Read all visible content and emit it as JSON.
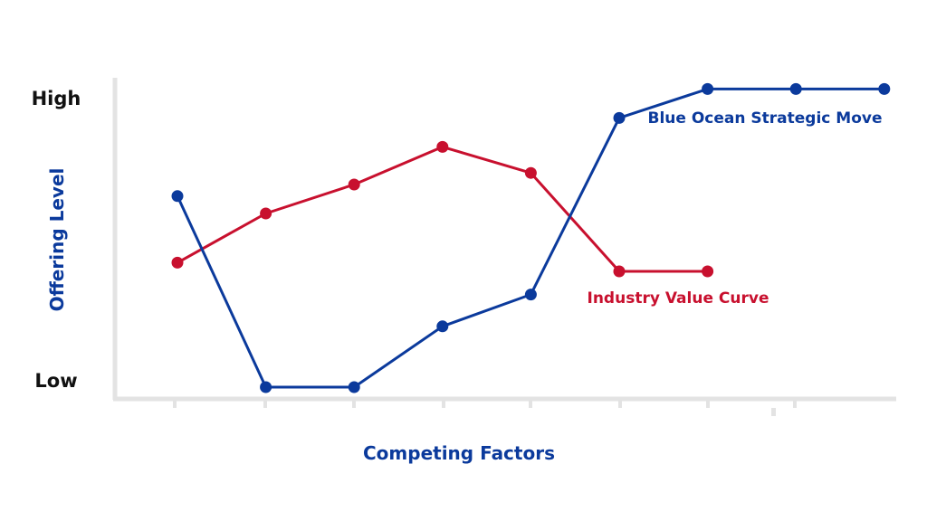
{
  "chart_data": {
    "type": "line",
    "xlabel": "Competing Factors",
    "ylabel": "Offering Level",
    "y_ticks": {
      "high": "High",
      "low": "Low"
    },
    "ylim": [
      0,
      100
    ],
    "grid": false,
    "colors": {
      "axis": "#e3e3e3",
      "blue": "#0b3a9c",
      "red": "#c8102e",
      "tick_text": "#111111"
    },
    "series": [
      {
        "name": "Blue Ocean Strategic Move",
        "color_key": "blue",
        "points": [
          {
            "x": 1,
            "y": 66
          },
          {
            "x": 2,
            "y": 0
          },
          {
            "x": 3,
            "y": 0
          },
          {
            "x": 4,
            "y": 21
          },
          {
            "x": 5,
            "y": 32
          },
          {
            "x": 6,
            "y": 93
          },
          {
            "x": 7,
            "y": 103
          },
          {
            "x": 8,
            "y": 103
          },
          {
            "x": 9,
            "y": 103
          }
        ]
      },
      {
        "name": "Industry Value Curve",
        "color_key": "red",
        "points": [
          {
            "x": 1,
            "y": 43
          },
          {
            "x": 2,
            "y": 60
          },
          {
            "x": 3,
            "y": 70
          },
          {
            "x": 4,
            "y": 83
          },
          {
            "x": 5,
            "y": 74
          },
          {
            "x": 6,
            "y": 40
          },
          {
            "x": 7,
            "y": 40
          }
        ]
      }
    ]
  }
}
